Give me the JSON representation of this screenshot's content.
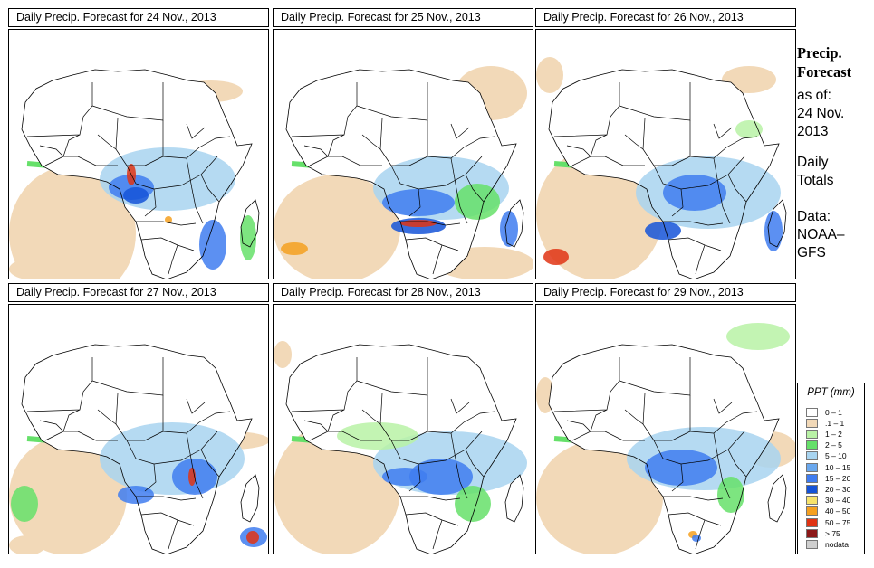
{
  "panels": [
    {
      "title": "Daily Precip. Forecast for  24 Nov., 2013"
    },
    {
      "title": "Daily Precip. Forecast for  25 Nov., 2013"
    },
    {
      "title": "Daily Precip. Forecast for  26 Nov., 2013"
    },
    {
      "title": "Daily Precip. Forecast for  27 Nov., 2013"
    },
    {
      "title": "Daily Precip. Forecast for  28 Nov., 2013"
    },
    {
      "title": "Daily Precip. Forecast for  29 Nov., 2013"
    }
  ],
  "side": {
    "title_line1": "Precip.",
    "title_line2": "Forecast",
    "asof_line1": "as of:",
    "asof_line2": "24 Nov.",
    "asof_line3": "2013",
    "daily_line1": "Daily",
    "daily_line2": "Totals",
    "data_line1": "Data:",
    "data_line2": "NOAA–",
    "data_line3": "GFS"
  },
  "legend": {
    "title": "PPT (mm)",
    "items": [
      {
        "label": "0 – 1",
        "color": "#ffffff"
      },
      {
        "label": ".1 – 1",
        "color": "#f2d9b8"
      },
      {
        "label": "1 – 2",
        "color": "#b9f2a6"
      },
      {
        "label": "2 – 5",
        "color": "#66e06a"
      },
      {
        "label": "5 – 10",
        "color": "#a8d4f0"
      },
      {
        "label": "10 – 15",
        "color": "#6aa8ee"
      },
      {
        "label": "15 – 20",
        "color": "#3f7cf0"
      },
      {
        "label": "20 – 30",
        "color": "#1553d8"
      },
      {
        "label": "30 – 40",
        "color": "#f7e36b"
      },
      {
        "label": "40 – 50",
        "color": "#f5a020"
      },
      {
        "label": "50 – 75",
        "color": "#e03414"
      },
      {
        "label": "> 75",
        "color": "#8c1818"
      },
      {
        "label": "nodata",
        "color": "#cfcfcf"
      }
    ]
  },
  "colors": {
    "light_precip": "#f2d9b8",
    "green_light": "#b9f2a6",
    "green": "#66e06a",
    "blue_light": "#a8d4f0",
    "blue": "#3f7cf0",
    "blue_dark": "#1553d8",
    "yellow": "#f7e36b",
    "orange": "#f5a020",
    "red": "#e03414",
    "dark_red": "#8c1818"
  }
}
